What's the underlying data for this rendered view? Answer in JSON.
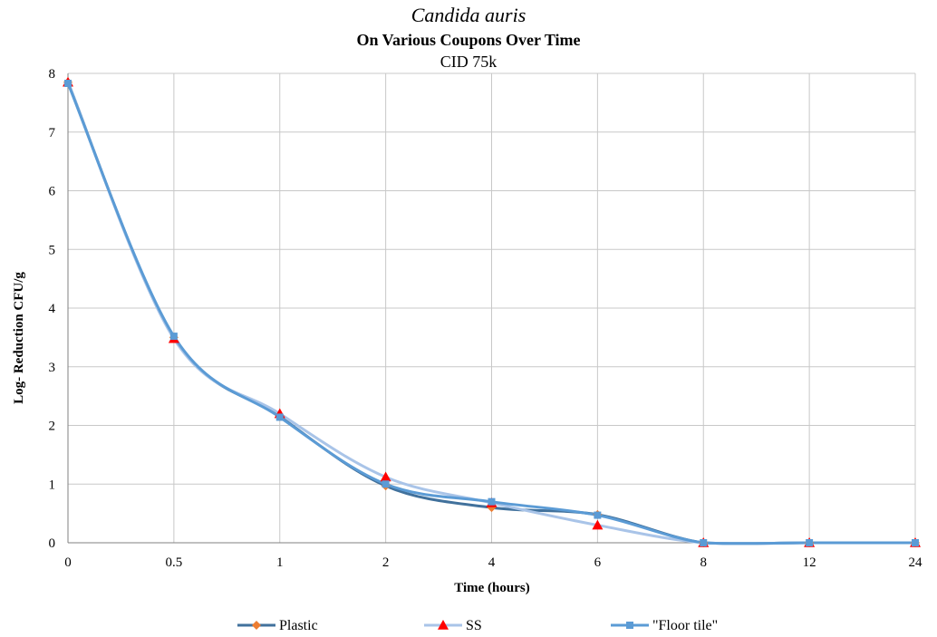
{
  "chart_data": {
    "type": "line",
    "title": "Candida auris",
    "subtitle": "On Various Coupons Over Time",
    "subtitle2": "CID 75k",
    "xlabel": "Time (hours)",
    "ylabel": "Log- Reduction CFU/g",
    "categories": [
      "0",
      "0.5",
      "1",
      "2",
      "4",
      "6",
      "8",
      "12",
      "24"
    ],
    "ylim": [
      0,
      8
    ],
    "yticks": [
      0,
      1,
      2,
      3,
      4,
      5,
      6,
      7,
      8
    ],
    "grid": true,
    "legend_position": "bottom",
    "smoothed": true,
    "series": [
      {
        "name": "Plastic",
        "values": [
          7.85,
          3.5,
          2.15,
          0.97,
          0.6,
          0.48,
          0.0,
          0.0,
          0.0
        ],
        "color": "#4472c4",
        "line_color": "#41719c",
        "marker": "diamond",
        "marker_color": "#ed7d31"
      },
      {
        "name": "SS",
        "values": [
          7.85,
          3.48,
          2.2,
          1.12,
          0.68,
          0.3,
          0.0,
          0.0,
          0.0
        ],
        "color": "#a9c4e8",
        "line_color": "#a9c4e8",
        "marker": "triangle",
        "marker_color": "#ff0000"
      },
      {
        "name": "\"Floor tile\"",
        "values": [
          7.83,
          3.52,
          2.14,
          1.0,
          0.7,
          0.47,
          0.0,
          0.0,
          0.0
        ],
        "color": "#5b9bd5",
        "line_color": "#5b9bd5",
        "marker": "square",
        "marker_color": "#5b9bd5"
      }
    ]
  }
}
